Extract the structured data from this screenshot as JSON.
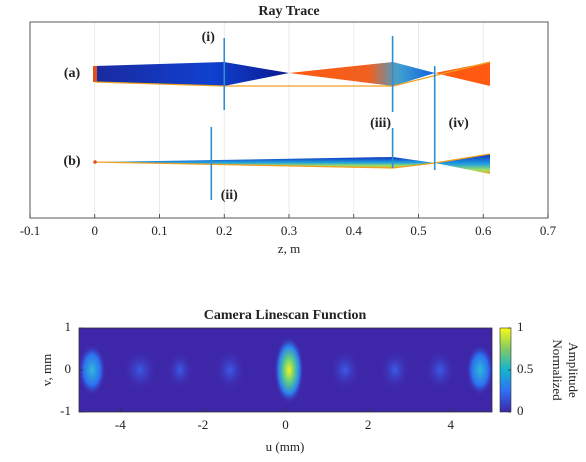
{
  "chart_data": [
    {
      "type": "ray-trace",
      "title": "Ray Trace",
      "xlabel": "z, m",
      "xlim": [
        -0.1,
        0.7
      ],
      "xticks": [
        -0.1,
        0,
        0.1,
        0.2,
        0.3,
        0.4,
        0.5,
        0.6,
        0.7
      ],
      "grid": true,
      "beam_labels": [
        "(a)",
        "(b)"
      ],
      "lenses": [
        {
          "label": "(i)",
          "z": 0.2
        },
        {
          "label": "(ii)",
          "z": 0.18
        },
        {
          "label": "(iii)",
          "z": 0.46
        },
        {
          "label": "(iv)",
          "z": 0.525
        }
      ]
    },
    {
      "type": "heatmap",
      "title": "Camera Linescan Function",
      "xlabel": "u (mm)",
      "ylabel": "v, mm",
      "xlim": [
        -5,
        5
      ],
      "ylim": [
        -1,
        1
      ],
      "xticks": [
        -4,
        -2,
        0,
        2,
        4
      ],
      "yticks": [
        -1,
        0,
        1
      ],
      "colorbar": {
        "label": [
          "Normalized",
          "Amplitude"
        ],
        "lim": [
          0,
          1
        ],
        "ticks": [
          0,
          0.5,
          1
        ]
      }
    }
  ]
}
